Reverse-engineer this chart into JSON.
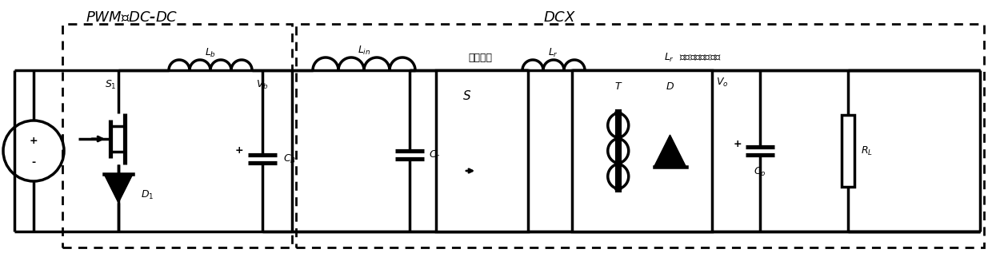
{
  "bg_color": "#ffffff",
  "line_color": "#000000",
  "lw": 2.5,
  "fig_w": 12.4,
  "fig_h": 3.37,
  "dpi": 100
}
